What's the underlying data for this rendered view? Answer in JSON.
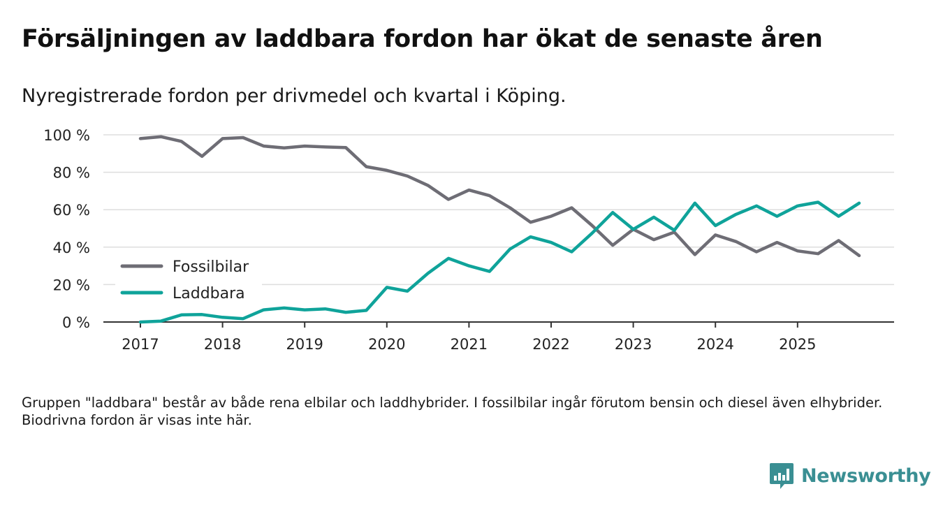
{
  "title": "Försäljningen av laddbara fordon har ökat de senaste åren",
  "subtitle": "Nyregistrerade fordon per drivmedel och kvartal i Köping.",
  "footnote": "Gruppen \"laddbara\" består av både rena elbilar och laddhybrider. I fossilbilar ingår förutom bensin och diesel även elhybrider. Biodrivna fordon är visas inte här.",
  "brand": "Newsworthy",
  "colors": {
    "fossil": "#6e6d75",
    "laddbara": "#0fa39a",
    "grid": "#dddddd",
    "axis": "#333333",
    "brand": "#3a8f93"
  },
  "chart_data": {
    "type": "line",
    "title": "Försäljningen av laddbara fordon har ökat de senaste åren",
    "xlabel": "",
    "ylabel": "",
    "ylim": [
      0,
      100
    ],
    "yticks": [
      0,
      20,
      40,
      60,
      80,
      100
    ],
    "ytick_labels": [
      "0 %",
      "20 %",
      "40 %",
      "60 %",
      "80 %",
      "100 %"
    ],
    "xlim": [
      2017,
      2026
    ],
    "xticks": [
      2017,
      2018,
      2019,
      2020,
      2021,
      2022,
      2023,
      2024,
      2025
    ],
    "xtick_labels": [
      "2017",
      "2018",
      "2019",
      "2020",
      "2021",
      "2022",
      "2023",
      "2024",
      "2025"
    ],
    "legend_position": "left-middle",
    "x": [
      2017.0,
      2017.25,
      2017.5,
      2017.75,
      2018.0,
      2018.25,
      2018.5,
      2018.75,
      2019.0,
      2019.25,
      2019.5,
      2019.75,
      2020.0,
      2020.25,
      2020.5,
      2020.75,
      2021.0,
      2021.25,
      2021.5,
      2021.75,
      2022.0,
      2022.25,
      2022.5,
      2022.75,
      2023.0,
      2023.25,
      2023.5,
      2023.75,
      2024.0,
      2024.25,
      2024.5,
      2024.75,
      2025.0,
      2025.25,
      2025.5,
      2025.75
    ],
    "series": [
      {
        "name": "Fossilbilar",
        "color": "#6e6d75",
        "values": [
          98,
          99,
          96.5,
          88.5,
          98,
          98.5,
          94,
          93,
          94,
          93.5,
          93.2,
          83,
          81,
          78,
          73,
          65.5,
          70.5,
          67.5,
          61,
          53.3,
          56.5,
          61,
          51.5,
          41,
          49.5,
          44,
          48,
          36,
          46.5,
          43,
          37.5,
          42.5,
          38,
          36.5,
          43.5,
          35.5
        ]
      },
      {
        "name": "Laddbara",
        "color": "#0fa39a",
        "values": [
          0,
          0.5,
          3.8,
          4,
          2.5,
          1.8,
          6.5,
          7.5,
          6.5,
          7,
          5.2,
          6.2,
          18.5,
          16.5,
          26,
          34,
          30,
          27,
          39,
          45.5,
          42.5,
          37.5,
          47.5,
          58.5,
          49.5,
          56,
          49,
          63.5,
          51.5,
          57.5,
          62,
          56.5,
          62,
          64,
          56.5,
          63.5
        ]
      }
    ]
  }
}
